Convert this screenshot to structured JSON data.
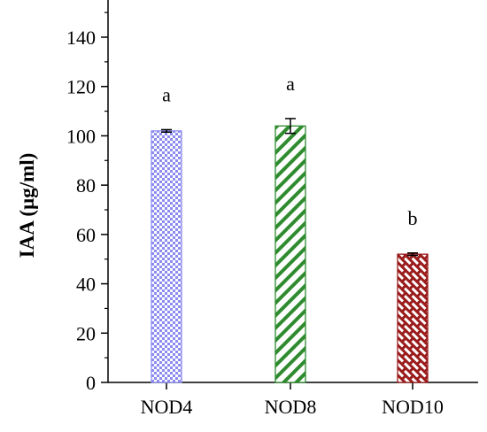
{
  "chart_data": {
    "type": "bar",
    "categories": [
      "NOD4",
      "NOD8",
      "NOD10"
    ],
    "values": [
      102,
      104,
      52
    ],
    "errors": [
      0.5,
      3,
      0.5
    ],
    "significance": [
      "a",
      "a",
      "b"
    ],
    "xlabel": "",
    "ylabel": "IAA (µg/ml)",
    "ylim": [
      0,
      150
    ],
    "yticks": [
      0,
      20,
      40,
      60,
      80,
      100,
      120,
      140
    ],
    "grid": false,
    "legend": "none",
    "bar_colors": [
      "#8c8cf0",
      "#2e8b2e",
      "#9b1c1c"
    ],
    "bar_patterns": [
      "checker",
      "diagonal-stripes",
      "brick"
    ]
  }
}
